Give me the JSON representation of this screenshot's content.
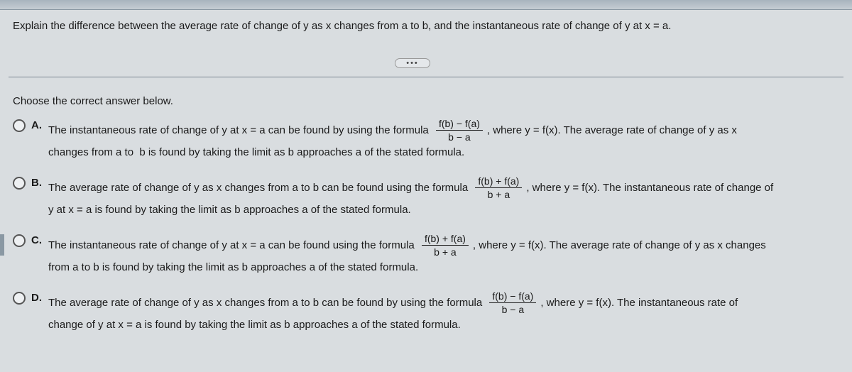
{
  "colors": {
    "page_bg": "#d9dde0",
    "text": "#1a1a1a",
    "border": "#8a98a3",
    "radio_border": "#555"
  },
  "question": "Explain the difference between the average rate of change of y as x changes from a to b, and the instantaneous rate of change of y at x = a.",
  "ellipsis": "•••",
  "instruction": "Choose the correct answer below.",
  "options": {
    "a": {
      "letter": "A.",
      "part1": "The instantaneous rate of change of y at x = a can be found by using the formula ",
      "frac_num": "f(b) − f(a)",
      "frac_den": "b − a",
      "part2": ", where y = f(x). The average rate of change of y as x",
      "part3": "changes from a to  b is found by taking the limit as b approaches a of the stated formula."
    },
    "b": {
      "letter": "B.",
      "part1": "The average rate of change of y as x changes from a to b can be found using the formula ",
      "frac_num": "f(b) + f(a)",
      "frac_den": "b + a",
      "part2": ", where y = f(x). The instantaneous rate of change of",
      "part3": "y at x = a is found by taking the limit as b approaches a of the stated formula."
    },
    "c": {
      "letter": "C.",
      "part1": "The instantaneous rate of change of y at x = a can be found using the formula ",
      "frac_num": "f(b) + f(a)",
      "frac_den": "b + a",
      "part2": ", where y = f(x). The average rate of change of y as x changes",
      "part3": "from a to b is found by taking the limit as b approaches a of the stated formula."
    },
    "d": {
      "letter": "D.",
      "part1": "The average rate of change of y as x changes from a to b can be found by using the formula ",
      "frac_num": "f(b) − f(a)",
      "frac_den": "b − a",
      "part2": ", where y = f(x). The instantaneous rate of",
      "part3": "change of y at x = a is found by taking the limit as b approaches a of the stated formula."
    }
  }
}
